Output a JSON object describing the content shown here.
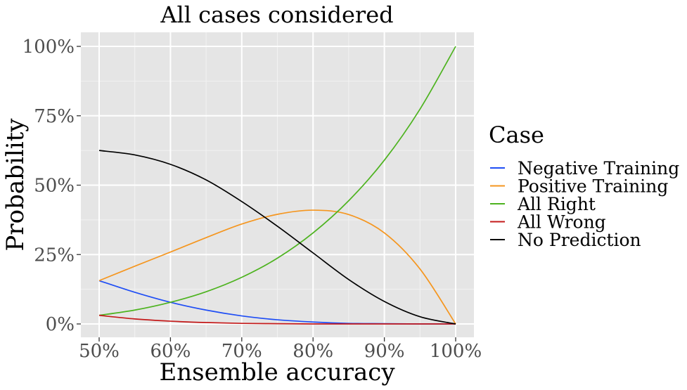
{
  "chart_data": {
    "type": "line",
    "title": "All cases considered",
    "xlabel": "Ensemble accuracy",
    "ylabel": "Probability",
    "xlim": [
      0.5,
      1.0
    ],
    "ylim": [
      0,
      1.0
    ],
    "x_ticks": [
      0.5,
      0.6,
      0.7,
      0.8,
      0.9,
      1.0
    ],
    "x_tick_labels": [
      "50%",
      "60%",
      "70%",
      "80%",
      "90%",
      "100%"
    ],
    "y_ticks": [
      0,
      0.25,
      0.5,
      0.75,
      1.0
    ],
    "y_tick_labels": [
      "0%",
      "25%",
      "50%",
      "75%",
      "100%"
    ],
    "grid": true,
    "legend": {
      "title": "Case",
      "placement": "right"
    },
    "x": [
      0.5,
      0.55,
      0.6,
      0.65,
      0.7,
      0.75,
      0.8,
      0.85,
      0.9,
      0.95,
      1.0
    ],
    "series": [
      {
        "name": "Negative Training",
        "color": "#1f4ef5",
        "values": [
          0.156,
          0.114,
          0.078,
          0.05,
          0.029,
          0.015,
          0.007,
          0.002,
          0.001,
          0.0,
          0.0
        ]
      },
      {
        "name": "Positive Training",
        "color": "#f5961f",
        "values": [
          0.156,
          0.208,
          0.259,
          0.311,
          0.36,
          0.395,
          0.41,
          0.394,
          0.328,
          0.198,
          0.0
        ]
      },
      {
        "name": "All Right",
        "color": "#4db31f",
        "values": [
          0.031,
          0.05,
          0.078,
          0.116,
          0.168,
          0.237,
          0.328,
          0.444,
          0.59,
          0.774,
          1.0
        ]
      },
      {
        "name": "All Wrong",
        "color": "#c41a1a",
        "values": [
          0.031,
          0.018,
          0.01,
          0.005,
          0.002,
          0.001,
          0.0,
          0.0,
          0.0,
          0.0,
          0.0
        ]
      },
      {
        "name": "No Prediction",
        "color": "#000000",
        "values": [
          0.625,
          0.609,
          0.575,
          0.519,
          0.441,
          0.352,
          0.256,
          0.16,
          0.081,
          0.026,
          0.0
        ]
      }
    ]
  }
}
